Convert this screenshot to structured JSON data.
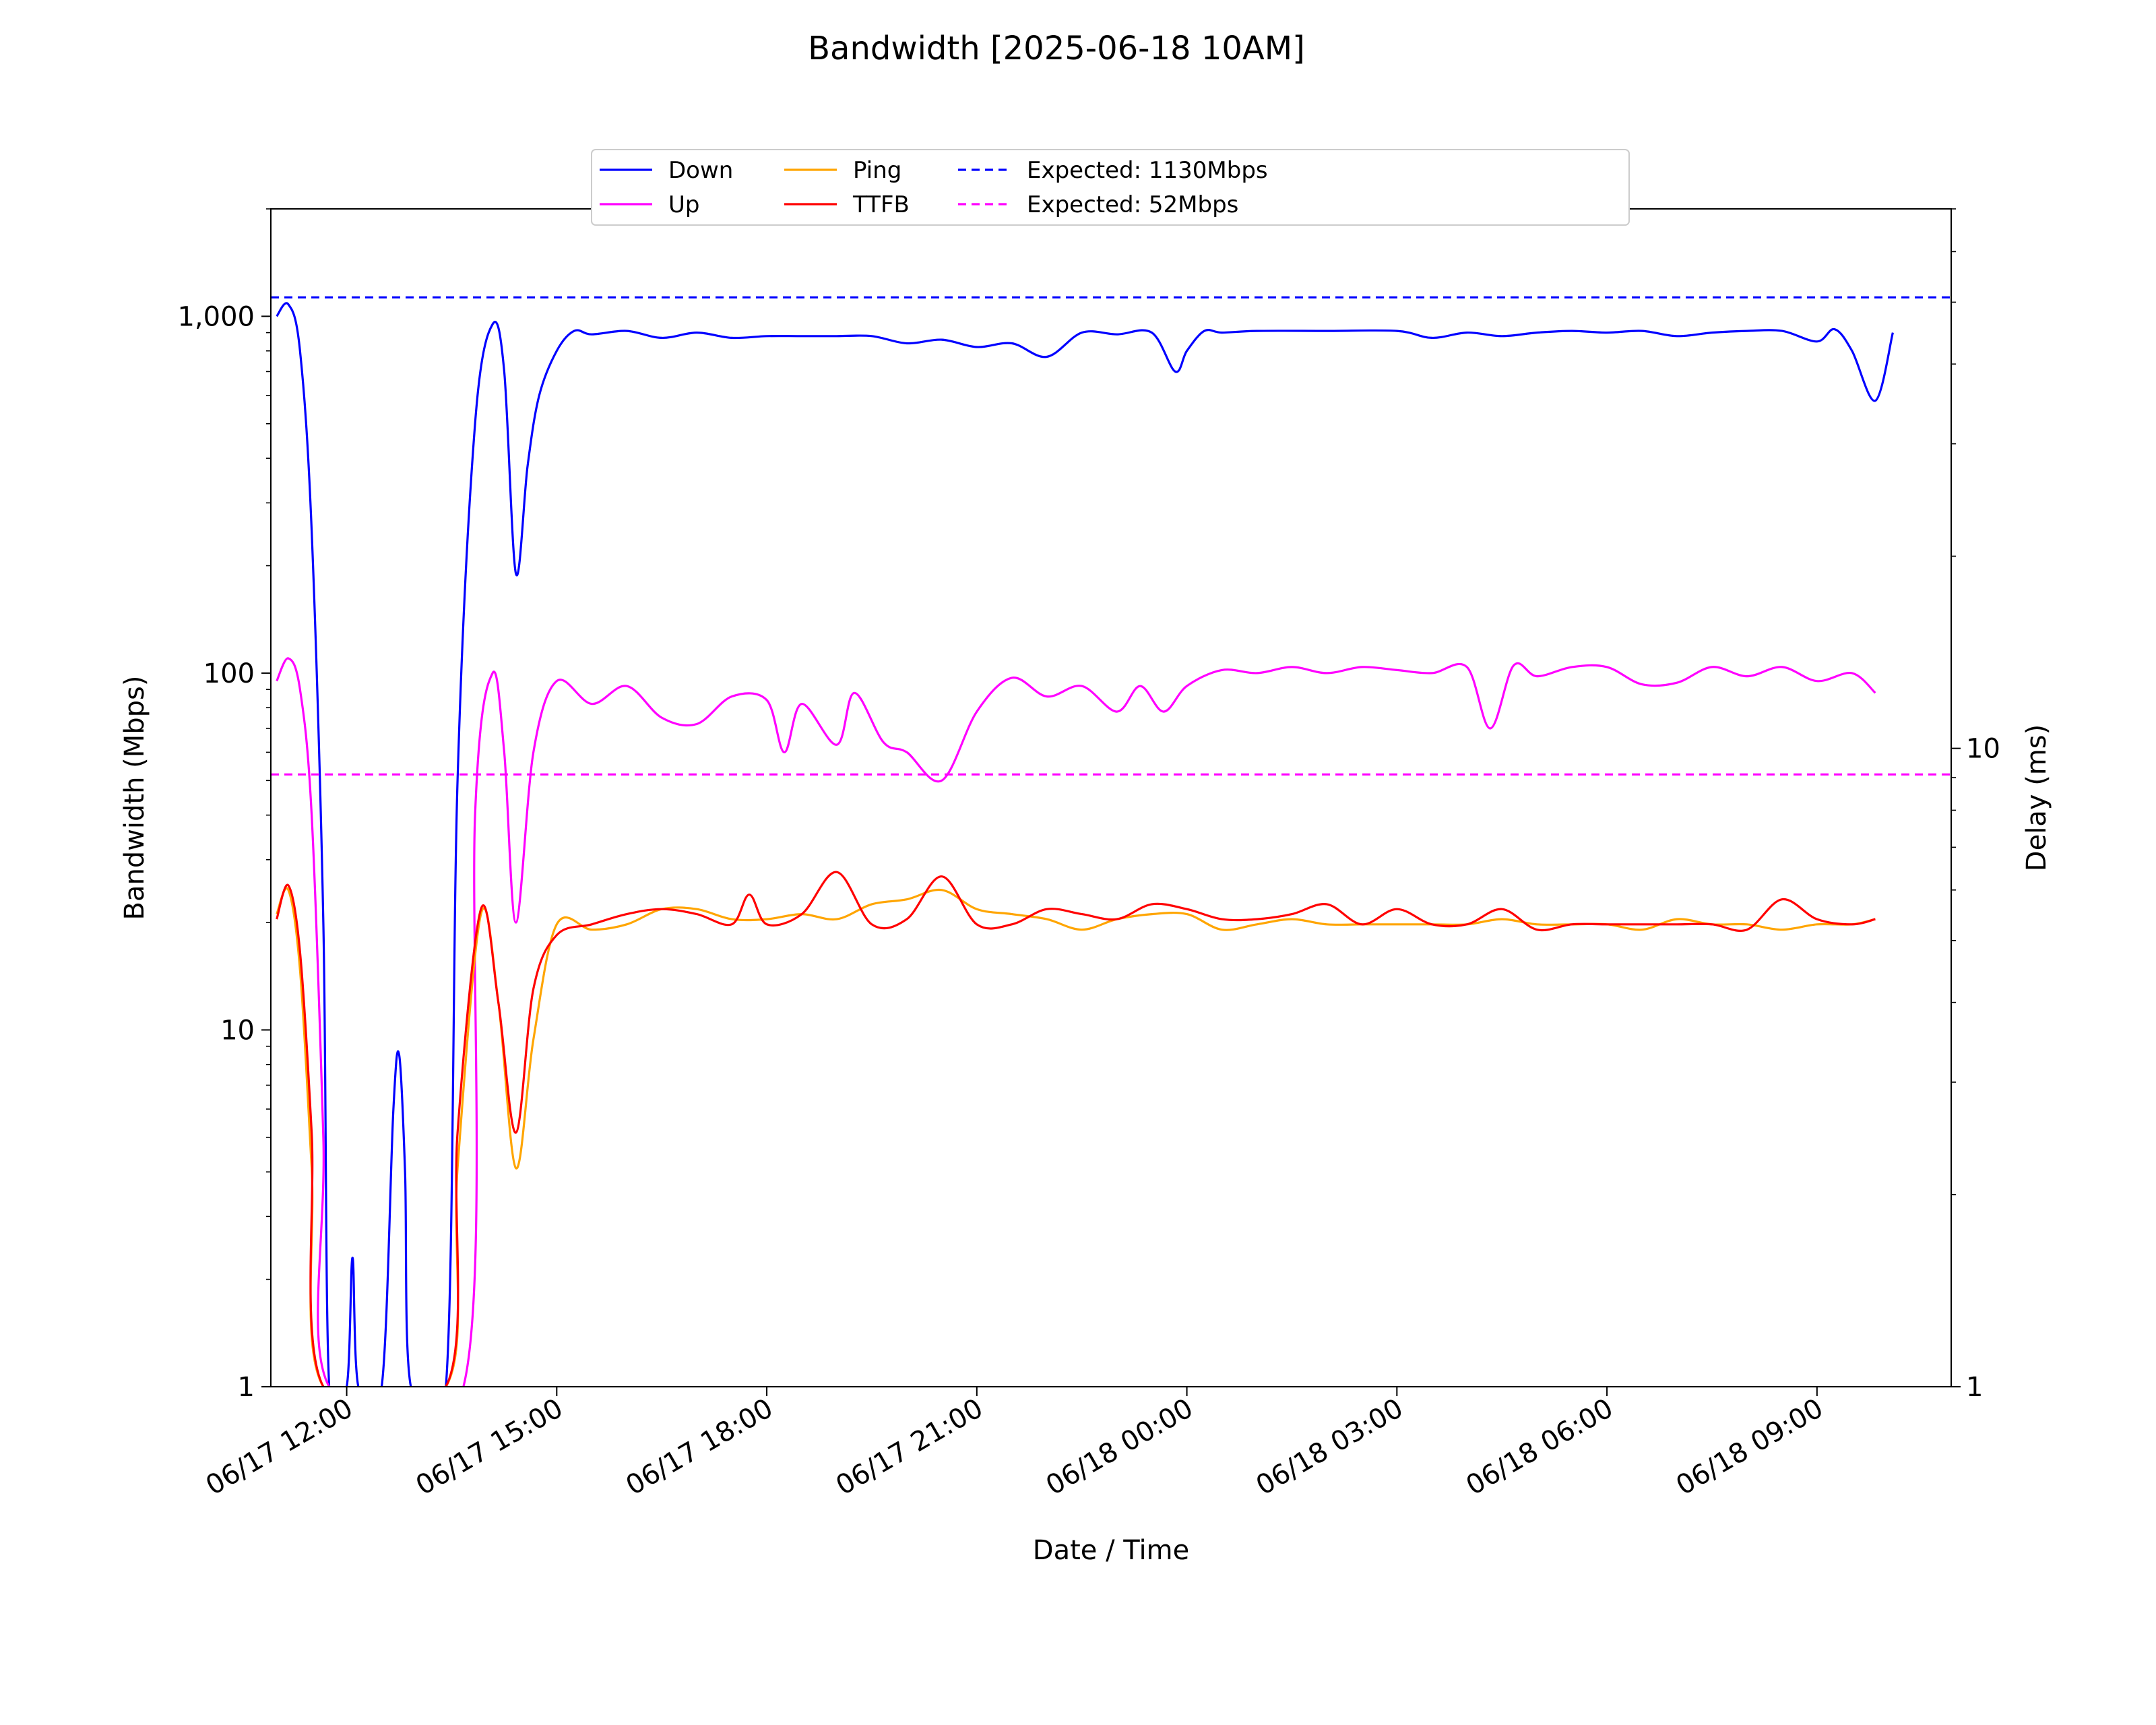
{
  "chart_data": {
    "type": "line",
    "title": "Bandwidth [2025-06-18 10AM]",
    "xlabel": "Date / Time",
    "ylabel_left": "Bandwidth (Mbps)",
    "ylabel_right": "Delay (ms)",
    "left_axis": {
      "scale": "log",
      "range": [
        1,
        2000
      ],
      "ticks": [
        1,
        10,
        100,
        1000
      ],
      "tick_labels": [
        "1",
        "10",
        "100",
        "1,000"
      ]
    },
    "right_axis": {
      "scale": "log",
      "range": [
        1,
        70
      ],
      "ticks": [
        1,
        10
      ],
      "tick_labels": [
        "1",
        "10"
      ]
    },
    "x_axis": {
      "range": [
        "06/17 10:55",
        "06/18 10:55"
      ],
      "ticks": [
        "06/17 12:00",
        "06/17 15:00",
        "06/17 18:00",
        "06/17 21:00",
        "06/18 00:00",
        "06/18 03:00",
        "06/18 06:00",
        "06/18 09:00"
      ]
    },
    "grid": false,
    "legend": {
      "placement": "top-center",
      "entries": [
        {
          "label": "Down",
          "color": "#0000ff",
          "style": "solid"
        },
        {
          "label": "Up",
          "color": "#ff00ff",
          "style": "solid"
        },
        {
          "label": "Ping",
          "color": "#ffa500",
          "style": "solid"
        },
        {
          "label": "TTFB",
          "color": "#ff0000",
          "style": "solid"
        },
        {
          "label": "Expected: 1130Mbps",
          "color": "#0000ff",
          "style": "dashed"
        },
        {
          "label": "Expected: 52Mbps",
          "color": "#ff00ff",
          "style": "dashed"
        }
      ]
    },
    "reference_lines": [
      {
        "name": "Expected: 1130Mbps",
        "axis": "left",
        "value": 1130,
        "color": "#0000ff"
      },
      {
        "name": "Expected: 52Mbps",
        "axis": "left",
        "value": 52,
        "color": "#ff00ff"
      }
    ],
    "series": [
      {
        "name": "Down",
        "axis": "left",
        "color": "#0000ff",
        "points": [
          [
            "06/17 11:00",
            1000
          ],
          [
            "06/17 11:10",
            1080
          ],
          [
            "06/17 11:20",
            800
          ],
          [
            "06/17 11:30",
            250
          ],
          [
            "06/17 11:40",
            20
          ],
          [
            "06/17 11:45",
            1
          ],
          [
            "06/17 12:00",
            1
          ],
          [
            "06/17 12:05",
            2.3
          ],
          [
            "06/17 12:10",
            1
          ],
          [
            "06/17 12:30",
            1
          ],
          [
            "06/17 12:40",
            6
          ],
          [
            "06/17 12:45",
            8.5
          ],
          [
            "06/17 12:50",
            4
          ],
          [
            "06/17 12:55",
            1
          ],
          [
            "06/17 13:25",
            1
          ],
          [
            "06/17 13:35",
            50
          ],
          [
            "06/17 13:50",
            500
          ],
          [
            "06/17 14:05",
            950
          ],
          [
            "06/17 14:15",
            700
          ],
          [
            "06/17 14:25",
            190
          ],
          [
            "06/17 14:35",
            380
          ],
          [
            "06/17 14:45",
            600
          ],
          [
            "06/17 15:00",
            800
          ],
          [
            "06/17 15:15",
            910
          ],
          [
            "06/17 15:30",
            890
          ],
          [
            "06/17 16:00",
            910
          ],
          [
            "06/17 16:30",
            870
          ],
          [
            "06/17 17:00",
            900
          ],
          [
            "06/17 17:30",
            870
          ],
          [
            "06/17 18:00",
            880
          ],
          [
            "06/17 18:30",
            880
          ],
          [
            "06/17 19:00",
            880
          ],
          [
            "06/17 19:30",
            880
          ],
          [
            "06/17 20:00",
            840
          ],
          [
            "06/17 20:30",
            860
          ],
          [
            "06/17 21:00",
            820
          ],
          [
            "06/17 21:30",
            840
          ],
          [
            "06/17 22:00",
            770
          ],
          [
            "06/17 22:30",
            900
          ],
          [
            "06/17 23:00",
            890
          ],
          [
            "06/17 23:30",
            900
          ],
          [
            "06/17 23:50",
            700
          ],
          [
            "06/18 00:00",
            800
          ],
          [
            "06/18 00:15",
            910
          ],
          [
            "06/18 00:30",
            900
          ],
          [
            "06/18 01:00",
            910
          ],
          [
            "06/18 02:00",
            910
          ],
          [
            "06/18 03:00",
            910
          ],
          [
            "06/18 03:30",
            870
          ],
          [
            "06/18 04:00",
            900
          ],
          [
            "06/18 04:30",
            880
          ],
          [
            "06/18 05:00",
            900
          ],
          [
            "06/18 05:30",
            910
          ],
          [
            "06/18 06:00",
            900
          ],
          [
            "06/18 06:30",
            910
          ],
          [
            "06/18 07:00",
            880
          ],
          [
            "06/18 07:30",
            900
          ],
          [
            "06/18 08:00",
            910
          ],
          [
            "06/18 08:30",
            910
          ],
          [
            "06/18 09:00",
            850
          ],
          [
            "06/18 09:15",
            920
          ],
          [
            "06/18 09:30",
            800
          ],
          [
            "06/18 09:50",
            580
          ],
          [
            "06/18 10:05",
            900
          ]
        ]
      },
      {
        "name": "Up",
        "axis": "left",
        "color": "#ff00ff",
        "points": [
          [
            "06/17 11:00",
            95
          ],
          [
            "06/17 11:10",
            110
          ],
          [
            "06/17 11:20",
            90
          ],
          [
            "06/17 11:30",
            40
          ],
          [
            "06/17 11:40",
            5
          ],
          [
            "06/17 11:45",
            1
          ],
          [
            "06/17 13:40",
            1
          ],
          [
            "06/17 13:50",
            40
          ],
          [
            "06/17 14:05",
            100
          ],
          [
            "06/17 14:15",
            60
          ],
          [
            "06/17 14:25",
            20
          ],
          [
            "06/17 14:40",
            60
          ],
          [
            "06/17 15:00",
            95
          ],
          [
            "06/17 15:30",
            82
          ],
          [
            "06/17 16:00",
            92
          ],
          [
            "06/17 16:30",
            75
          ],
          [
            "06/17 17:00",
            72
          ],
          [
            "06/17 17:30",
            86
          ],
          [
            "06/17 18:00",
            84
          ],
          [
            "06/17 18:15",
            60
          ],
          [
            "06/17 18:30",
            82
          ],
          [
            "06/17 19:00",
            63
          ],
          [
            "06/17 19:15",
            88
          ],
          [
            "06/17 19:40",
            64
          ],
          [
            "06/17 20:00",
            60
          ],
          [
            "06/17 20:30",
            50
          ],
          [
            "06/17 21:00",
            78
          ],
          [
            "06/17 21:30",
            97
          ],
          [
            "06/17 22:00",
            86
          ],
          [
            "06/17 22:30",
            92
          ],
          [
            "06/17 23:00",
            78
          ],
          [
            "06/17 23:20",
            92
          ],
          [
            "06/17 23:40",
            78
          ],
          [
            "06/18 00:00",
            92
          ],
          [
            "06/18 00:30",
            102
          ],
          [
            "06/18 01:00",
            100
          ],
          [
            "06/18 01:30",
            104
          ],
          [
            "06/18 02:00",
            100
          ],
          [
            "06/18 02:30",
            104
          ],
          [
            "06/18 03:00",
            102
          ],
          [
            "06/18 03:30",
            100
          ],
          [
            "06/18 04:00",
            104
          ],
          [
            "06/18 04:20",
            70
          ],
          [
            "06/18 04:40",
            105
          ],
          [
            "06/18 05:00",
            98
          ],
          [
            "06/18 05:30",
            104
          ],
          [
            "06/18 06:00",
            104
          ],
          [
            "06/18 06:30",
            93
          ],
          [
            "06/18 07:00",
            94
          ],
          [
            "06/18 07:30",
            104
          ],
          [
            "06/18 08:00",
            98
          ],
          [
            "06/18 08:30",
            104
          ],
          [
            "06/18 09:00",
            95
          ],
          [
            "06/18 09:30",
            100
          ],
          [
            "06/18 09:50",
            88
          ]
        ]
      },
      {
        "name": "Ping",
        "axis": "right",
        "color": "#ffa500",
        "points": [
          [
            "06/17 11:00",
            5.5
          ],
          [
            "06/17 11:10",
            6.0
          ],
          [
            "06/17 11:20",
            4.5
          ],
          [
            "06/17 11:30",
            2.2
          ],
          [
            "06/17 11:40",
            1
          ],
          [
            "06/17 13:25",
            1
          ],
          [
            "06/17 13:35",
            2.2
          ],
          [
            "06/17 13:55",
            5.5
          ],
          [
            "06/17 14:10",
            4.0
          ],
          [
            "06/17 14:25",
            2.2
          ],
          [
            "06/17 14:40",
            3.5
          ],
          [
            "06/17 15:00",
            5.3
          ],
          [
            "06/17 15:30",
            5.2
          ],
          [
            "06/17 16:00",
            5.3
          ],
          [
            "06/17 16:30",
            5.6
          ],
          [
            "06/17 17:00",
            5.6
          ],
          [
            "06/17 17:30",
            5.4
          ],
          [
            "06/17 18:00",
            5.4
          ],
          [
            "06/17 18:30",
            5.5
          ],
          [
            "06/17 19:00",
            5.4
          ],
          [
            "06/17 19:30",
            5.7
          ],
          [
            "06/17 20:00",
            5.8
          ],
          [
            "06/17 20:30",
            6.0
          ],
          [
            "06/17 21:00",
            5.6
          ],
          [
            "06/17 21:30",
            5.5
          ],
          [
            "06/17 22:00",
            5.4
          ],
          [
            "06/17 22:30",
            5.2
          ],
          [
            "06/17 23:00",
            5.4
          ],
          [
            "06/17 23:30",
            5.5
          ],
          [
            "06/18 00:00",
            5.5
          ],
          [
            "06/18 00:30",
            5.2
          ],
          [
            "06/18 01:00",
            5.3
          ],
          [
            "06/18 01:30",
            5.4
          ],
          [
            "06/18 02:00",
            5.3
          ],
          [
            "06/18 02:30",
            5.3
          ],
          [
            "06/18 03:00",
            5.3
          ],
          [
            "06/18 03:30",
            5.3
          ],
          [
            "06/18 04:00",
            5.3
          ],
          [
            "06/18 04:30",
            5.4
          ],
          [
            "06/18 05:00",
            5.3
          ],
          [
            "06/18 05:30",
            5.3
          ],
          [
            "06/18 06:00",
            5.3
          ],
          [
            "06/18 06:30",
            5.2
          ],
          [
            "06/18 07:00",
            5.4
          ],
          [
            "06/18 07:30",
            5.3
          ],
          [
            "06/18 08:00",
            5.3
          ],
          [
            "06/18 08:30",
            5.2
          ],
          [
            "06/18 09:00",
            5.3
          ],
          [
            "06/18 09:30",
            5.3
          ],
          [
            "06/18 09:50",
            5.4
          ]
        ]
      },
      {
        "name": "TTFB",
        "axis": "right",
        "color": "#ff0000",
        "points": [
          [
            "06/17 11:00",
            5.4
          ],
          [
            "06/17 11:10",
            6.1
          ],
          [
            "06/17 11:20",
            4.8
          ],
          [
            "06/17 11:30",
            2.5
          ],
          [
            "06/17 11:40",
            1
          ],
          [
            "06/17 13:25",
            1
          ],
          [
            "06/17 13:35",
            2.5
          ],
          [
            "06/17 13:55",
            5.6
          ],
          [
            "06/17 14:10",
            4.0
          ],
          [
            "06/17 14:25",
            2.5
          ],
          [
            "06/17 14:40",
            4.2
          ],
          [
            "06/17 15:00",
            5.1
          ],
          [
            "06/17 15:30",
            5.3
          ],
          [
            "06/17 16:00",
            5.5
          ],
          [
            "06/17 16:30",
            5.6
          ],
          [
            "06/17 17:00",
            5.5
          ],
          [
            "06/17 17:30",
            5.3
          ],
          [
            "06/17 17:45",
            5.9
          ],
          [
            "06/17 18:00",
            5.3
          ],
          [
            "06/17 18:30",
            5.5
          ],
          [
            "06/17 19:00",
            6.4
          ],
          [
            "06/17 19:30",
            5.3
          ],
          [
            "06/17 20:00",
            5.4
          ],
          [
            "06/17 20:30",
            6.3
          ],
          [
            "06/17 21:00",
            5.3
          ],
          [
            "06/17 21:30",
            5.3
          ],
          [
            "06/17 22:00",
            5.6
          ],
          [
            "06/17 22:30",
            5.5
          ],
          [
            "06/17 23:00",
            5.4
          ],
          [
            "06/17 23:30",
            5.7
          ],
          [
            "06/18 00:00",
            5.6
          ],
          [
            "06/18 00:30",
            5.4
          ],
          [
            "06/18 01:00",
            5.4
          ],
          [
            "06/18 01:30",
            5.5
          ],
          [
            "06/18 02:00",
            5.7
          ],
          [
            "06/18 02:30",
            5.3
          ],
          [
            "06/18 03:00",
            5.6
          ],
          [
            "06/18 03:30",
            5.3
          ],
          [
            "06/18 04:00",
            5.3
          ],
          [
            "06/18 04:30",
            5.6
          ],
          [
            "06/18 05:00",
            5.2
          ],
          [
            "06/18 05:30",
            5.3
          ],
          [
            "06/18 06:00",
            5.3
          ],
          [
            "06/18 06:30",
            5.3
          ],
          [
            "06/18 07:00",
            5.3
          ],
          [
            "06/18 07:30",
            5.3
          ],
          [
            "06/18 08:00",
            5.2
          ],
          [
            "06/18 08:30",
            5.8
          ],
          [
            "06/18 09:00",
            5.4
          ],
          [
            "06/18 09:30",
            5.3
          ],
          [
            "06/18 09:50",
            5.4
          ]
        ]
      }
    ]
  }
}
